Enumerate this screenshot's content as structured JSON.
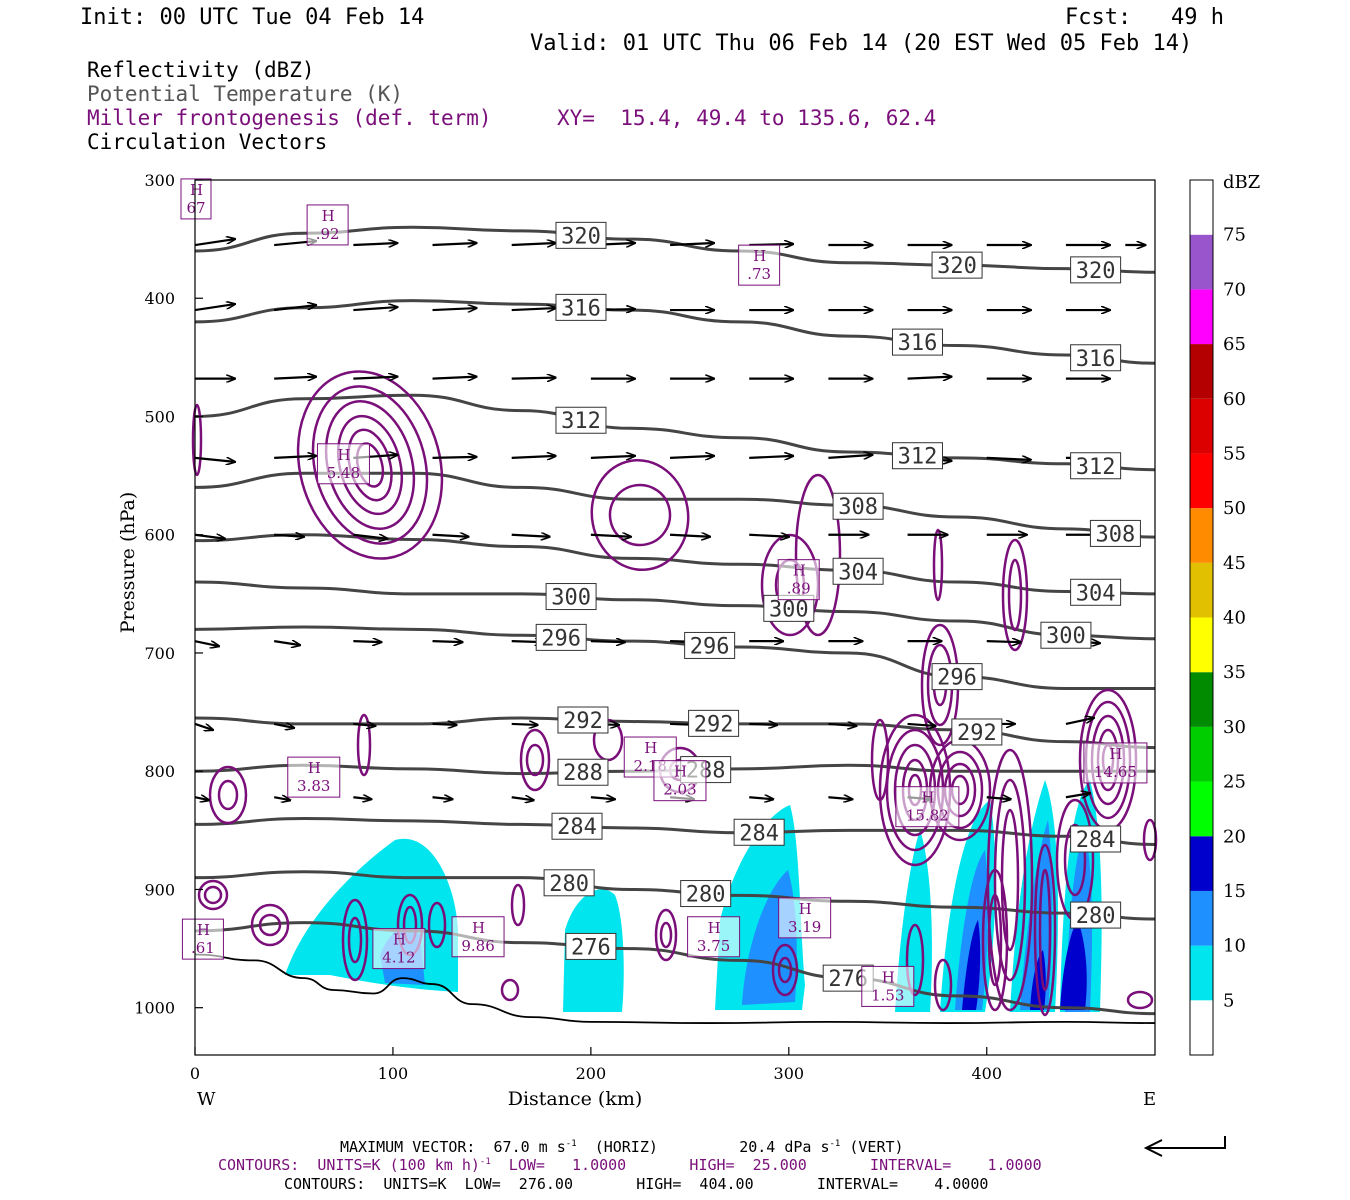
{
  "header": {
    "init": "Init: 00 UTC Tue 04 Feb 14",
    "fcst": "Fcst:   49 h",
    "valid": "Valid: 01 UTC Thu 06 Feb 14 (20 EST Wed 05 Feb 14)"
  },
  "legend": {
    "reflectivity": "Reflectivity (dBZ)",
    "theta": "Potential Temperature (K)",
    "frontogenesis": "Miller frontogenesis (def. term)",
    "xy": "XY=  15.4, 49.4 to 135.6, 62.4",
    "vectors": "Circulation Vectors"
  },
  "colors": {
    "theta": "#454545",
    "frontogenesis": "#7a0f7a",
    "vectors": "#000000",
    "terrain": "#000000"
  },
  "chart_data": {
    "type": "cross-section",
    "xlabel": "Distance (km)",
    "ylabel": "Pressure (hPa)",
    "xlim": [
      0,
      485
    ],
    "ylim": [
      1040,
      300
    ],
    "x_ticks": [
      0,
      100,
      200,
      300,
      400
    ],
    "y_ticks": [
      300,
      400,
      500,
      600,
      700,
      800,
      900,
      1000
    ],
    "x_end_labels": {
      "left": "W",
      "right": "E"
    },
    "colorbar": {
      "unit": "dBZ",
      "levels": [
        5,
        10,
        15,
        20,
        25,
        30,
        35,
        40,
        45,
        50,
        55,
        60,
        65,
        70,
        75
      ],
      "colors": [
        "#ffffff",
        "#00e5ee",
        "#1e90ff",
        "#0000cd",
        "#00ff00",
        "#00cd00",
        "#008b00",
        "#ffff00",
        "#e0c000",
        "#ff8c00",
        "#ff0000",
        "#dd0000",
        "#b40000",
        "#ff00ff",
        "#9955cc",
        "#ffffff"
      ]
    },
    "theta_contours": [
      {
        "label": "320",
        "p": [
          360,
          345,
          340,
          343,
          350,
          360,
          370,
          372,
          375,
          378
        ],
        "labels_at": [
          195,
          385,
          455
        ]
      },
      {
        "label": "316",
        "p": [
          420,
          408,
          402,
          405,
          410,
          420,
          432,
          440,
          448,
          455
        ],
        "labels_at": [
          195,
          365,
          455
        ]
      },
      {
        "label": "312",
        "p": [
          500,
          485,
          482,
          495,
          510,
          518,
          530,
          535,
          540,
          545
        ],
        "labels_at": [
          195,
          365,
          455
        ]
      },
      {
        "label": "308",
        "p": [
          560,
          548,
          548,
          560,
          570,
          570,
          575,
          585,
          595,
          602
        ],
        "labels_at": [
          335,
          465
        ]
      },
      {
        "label": "304",
        "p": [
          605,
          600,
          604,
          610,
          620,
          625,
          630,
          640,
          648,
          650
        ],
        "labels_at": [
          335,
          455
        ]
      },
      {
        "label": "300",
        "p": [
          640,
          645,
          650,
          650,
          655,
          660,
          665,
          673,
          685,
          688
        ],
        "labels_at": [
          190,
          300,
          440
        ]
      },
      {
        "label": "296",
        "p": [
          680,
          678,
          680,
          685,
          690,
          695,
          700,
          720,
          730,
          730
        ],
        "labels_at": [
          185,
          260,
          385
        ]
      },
      {
        "label": "292",
        "p": [
          755,
          760,
          760,
          755,
          758,
          760,
          760,
          765,
          775,
          780
        ],
        "labels_at": [
          196,
          262,
          395
        ]
      },
      {
        "label": "288",
        "p": [
          800,
          795,
          798,
          802,
          800,
          798,
          795,
          800,
          800,
          800
        ],
        "labels_at": [
          196,
          258
        ]
      },
      {
        "label": "284",
        "p": [
          845,
          840,
          842,
          845,
          848,
          852,
          850,
          850,
          855,
          862
        ],
        "labels_at": [
          193,
          285,
          455
        ]
      },
      {
        "label": "280",
        "p": [
          890,
          885,
          890,
          890,
          900,
          905,
          910,
          915,
          920,
          925
        ],
        "labels_at": [
          189,
          258,
          455
        ]
      },
      {
        "label": "276",
        "p": [
          935,
          928,
          935,
          945,
          950,
          960,
          975,
          990,
          1000,
          1005
        ],
        "labels_at": [
          200,
          330
        ]
      }
    ],
    "theta_x": [
      0,
      55,
      110,
      165,
      220,
      275,
      330,
      385,
      440,
      485
    ],
    "h_labels": [
      {
        "x": 0.5,
        "p": 316,
        "text": "67"
      },
      {
        "x": 67,
        "p": 338,
        "text": ".92"
      },
      {
        "x": 285,
        "p": 372,
        "text": ".73"
      },
      {
        "x": 75,
        "p": 540,
        "text": "5.48"
      },
      {
        "x": 305,
        "p": 638,
        "text": ".89"
      },
      {
        "x": 230,
        "p": 788,
        "text": "2.18"
      },
      {
        "x": 60,
        "p": 805,
        "text": "3.83"
      },
      {
        "x": 245,
        "p": 808,
        "text": "2.03"
      },
      {
        "x": 370,
        "p": 830,
        "text": "15.82"
      },
      {
        "x": 465,
        "p": 793,
        "text": "14.65"
      },
      {
        "x": 308,
        "p": 924,
        "text": "3.19"
      },
      {
        "x": 103,
        "p": 950,
        "text": "4.12"
      },
      {
        "x": 143,
        "p": 940,
        "text": "9.86"
      },
      {
        "x": 262,
        "p": 940,
        "text": "3.75"
      },
      {
        "x": 350,
        "p": 982,
        "text": "1.53"
      },
      {
        "x": 4,
        "p": 942,
        "text": ".61"
      }
    ],
    "max_vector": {
      "horiz": "67.0 m s⁻¹ (HORIZ)",
      "vert": "20.4 dPa s⁻¹ (VERT)"
    }
  },
  "footer": {
    "line1a": "MAXIMUM VECTOR:  67.0 m s",
    "line1b": "(HORIZ)",
    "line1c": "20.4 dPa s",
    "line1d": "(VERT)",
    "line2": "CONTOURS:  UNITS=K (100 km h)",
    "line2b": "  LOW=   1.0000       HIGH=  25.000       INTERVAL=    1.0000",
    "line3": "CONTOURS:  UNITS=K  LOW=  276.00       HIGH=  404.00       INTERVAL=    4.0000",
    "sup": "-1"
  }
}
